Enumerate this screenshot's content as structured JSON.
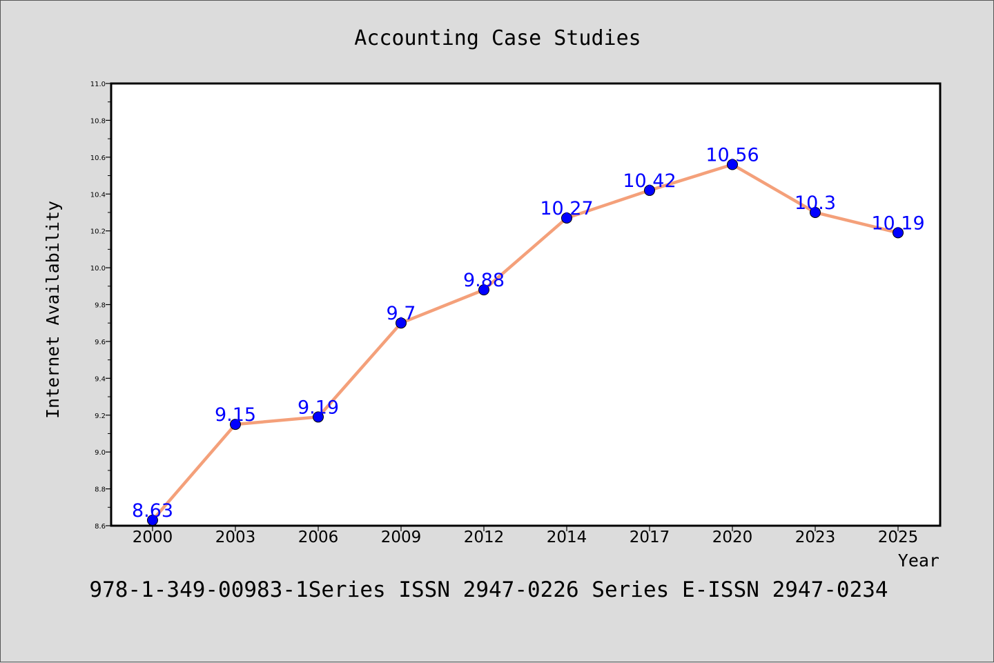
{
  "chart_data": {
    "type": "line",
    "title": "Accounting Case Studies",
    "xlabel": "Year",
    "ylabel": "Internet Availability",
    "categories": [
      "2000",
      "2003",
      "2006",
      "2009",
      "2012",
      "2014",
      "2017",
      "2020",
      "2023",
      "2025"
    ],
    "series": [
      {
        "values": [
          8.63,
          9.15,
          9.19,
          9.7,
          9.88,
          10.27,
          10.42,
          10.56,
          10.3,
          10.19
        ]
      }
    ],
    "data_labels": [
      "8.63",
      "9.15",
      "9.19",
      "9.7",
      "9.88",
      "10.27",
      "10.42",
      "10.56",
      "10.3",
      "10.19"
    ],
    "ylim": [
      8.6,
      11.0
    ],
    "yticks": [
      "8.6",
      "8.8",
      "9.0",
      "9.2",
      "9.4",
      "9.6",
      "9.8",
      "10.0",
      "10.2",
      "10.4",
      "10.6",
      "10.8",
      "11.0"
    ],
    "grid": false,
    "legend": "none",
    "colors": {
      "line": "#f4a07a",
      "marker": "#0000ff",
      "data_label": "#0000ff",
      "plot_bg": "#ffffff",
      "page_bg": "#dcdcdc"
    }
  },
  "footer": {
    "text": "978-1-349-00983-1Series ISSN 2947-0226 Series E-ISSN 2947-0234"
  }
}
